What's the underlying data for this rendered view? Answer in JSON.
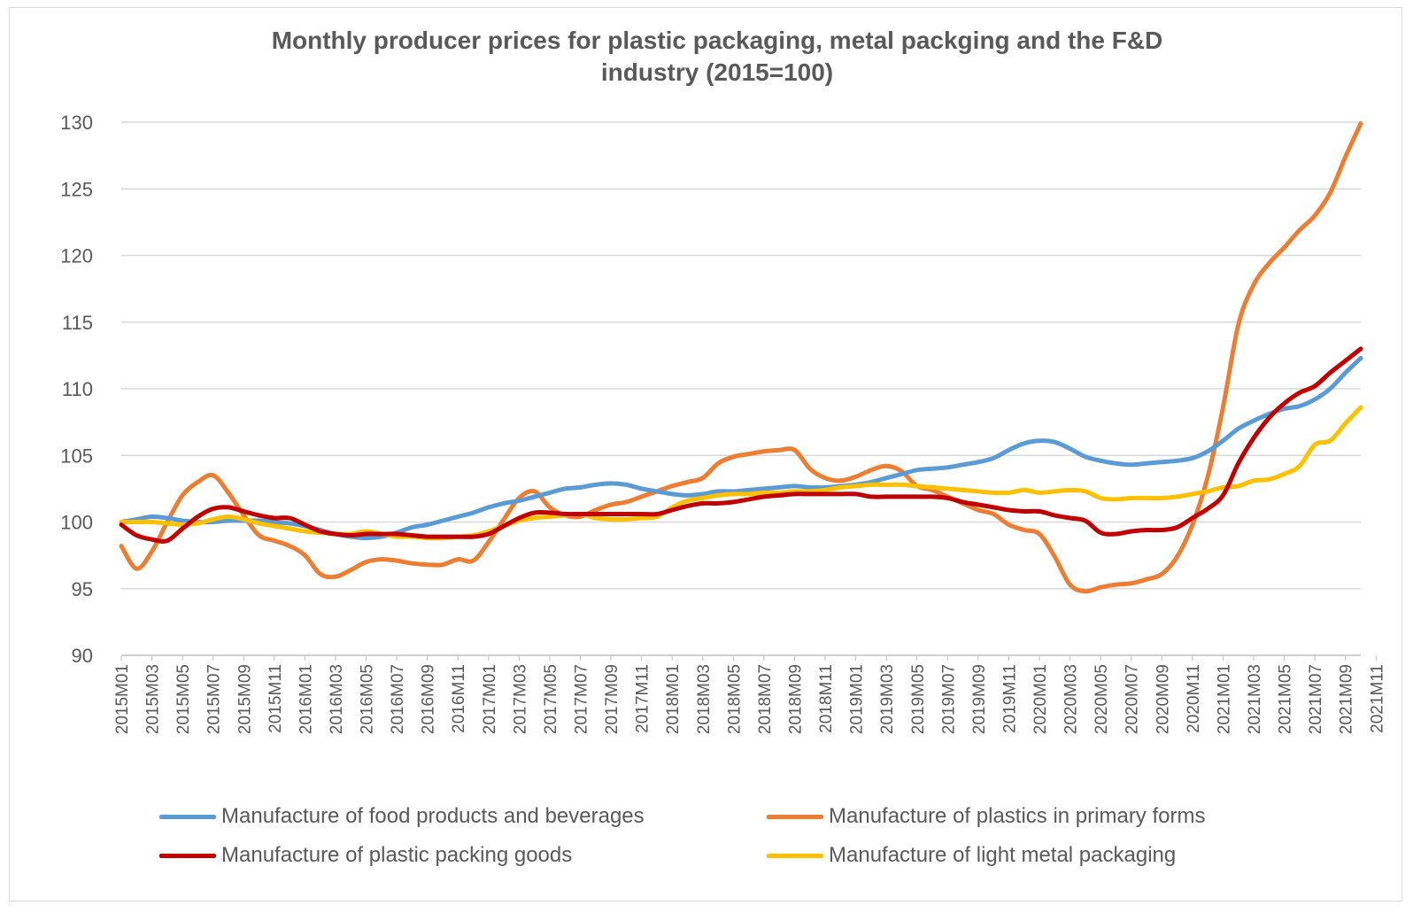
{
  "chart_data": {
    "type": "line",
    "title_line1": "Monthly producer prices for plastic packaging, metal packging and the F&D",
    "title_line2": "industry (2015=100)",
    "xlabel": "",
    "ylabel": "",
    "ylim": [
      90,
      130
    ],
    "yticks": [
      90,
      95,
      100,
      105,
      110,
      115,
      120,
      125,
      130
    ],
    "grid": "horizontal",
    "legend_position": "bottom",
    "xtick_labels": [
      "2015M01",
      "2015M03",
      "2015M05",
      "2015M07",
      "2015M09",
      "2015M11",
      "2016M01",
      "2016M03",
      "2016M05",
      "2016M07",
      "2016M09",
      "2016M11",
      "2017M01",
      "2017M03",
      "2017M05",
      "2017M07",
      "2017M09",
      "2017M11",
      "2018M01",
      "2018M03",
      "2018M05",
      "2018M07",
      "2018M09",
      "2018M11",
      "2019M01",
      "2019M03",
      "2019M05",
      "2019M07",
      "2019M09",
      "2019M11",
      "2020M01",
      "2020M03",
      "2020M05",
      "2020M07",
      "2020M09",
      "2020M11",
      "2021M01",
      "2021M03",
      "2021M05",
      "2021M07",
      "2021M09",
      "2021M11"
    ],
    "series": [
      {
        "name": "Manufacture of food products and beverages",
        "color": "#5B9BD5",
        "values": [
          100,
          100.2,
          100.4,
          100.3,
          100.1,
          100,
          100,
          100.1,
          100.1,
          100.1,
          100,
          99.9,
          99.7,
          99.4,
          99.1,
          98.9,
          98.8,
          98.9,
          99.2,
          99.6,
          99.8,
          100.1,
          100.4,
          100.7,
          101.1,
          101.4,
          101.6,
          101.9,
          102.2,
          102.5,
          102.6,
          102.8,
          102.9,
          102.8,
          102.5,
          102.3,
          102.1,
          102,
          102.1,
          102.3,
          102.3,
          102.4,
          102.5,
          102.6,
          102.7,
          102.6,
          102.6,
          102.7,
          102.8,
          103,
          103.3,
          103.6,
          103.9,
          104,
          104.1,
          104.3,
          104.5,
          104.8,
          105.4,
          105.9,
          106.1,
          106,
          105.5,
          104.9,
          104.6,
          104.4,
          104.3,
          104.4,
          104.5,
          104.6,
          104.8,
          105.3,
          106.1,
          107,
          107.6,
          108.1,
          108.5,
          108.7,
          109.2,
          110,
          111.2,
          112.3
        ]
      },
      {
        "name": "Manufacture of plastics in primary forms",
        "color": "#ED7D31",
        "values": [
          98.2,
          96.5,
          97.8,
          100,
          102,
          103,
          103.5,
          102.2,
          100.5,
          99,
          98.6,
          98.2,
          97.5,
          96.1,
          95.9,
          96.4,
          97,
          97.2,
          97.1,
          96.9,
          96.8,
          96.8,
          97.2,
          97.1,
          98.5,
          100.2,
          101.8,
          102.3,
          101.1,
          100.5,
          100.4,
          100.9,
          101.3,
          101.5,
          101.9,
          102.3,
          102.7,
          103,
          103.3,
          104.4,
          104.9,
          105.1,
          105.3,
          105.4,
          105.4,
          104,
          103.3,
          103.1,
          103.4,
          103.9,
          104.2,
          103.8,
          102.7,
          102.4,
          101.9,
          101.4,
          100.9,
          100.6,
          99.8,
          99.4,
          99.1,
          97.4,
          95.3,
          94.8,
          95.1,
          95.3,
          95.4,
          95.7,
          96.1,
          97.4,
          99.8,
          103.4,
          108.6,
          114.8,
          117.8,
          119.4,
          120.6,
          121.9,
          123,
          124.7,
          127.4,
          129.9
        ]
      },
      {
        "name": "Manufacture of plastic packing goods",
        "color": "#C00000",
        "values": [
          99.8,
          99,
          98.7,
          98.6,
          99.5,
          100.4,
          101,
          101.1,
          100.8,
          100.5,
          100.3,
          100.3,
          99.8,
          99.3,
          99.1,
          99,
          99.1,
          99.1,
          99.1,
          99,
          98.9,
          98.9,
          98.9,
          98.9,
          99.1,
          99.7,
          100.3,
          100.7,
          100.7,
          100.6,
          100.6,
          100.6,
          100.6,
          100.6,
          100.6,
          100.6,
          100.9,
          101.2,
          101.4,
          101.4,
          101.5,
          101.7,
          101.9,
          102,
          102.1,
          102.1,
          102.1,
          102.1,
          102.1,
          101.9,
          101.9,
          101.9,
          101.9,
          101.9,
          101.8,
          101.5,
          101.3,
          101.1,
          100.9,
          100.8,
          100.8,
          100.5,
          100.3,
          100.1,
          99.2,
          99.1,
          99.3,
          99.4,
          99.4,
          99.6,
          100.3,
          101,
          102,
          104.4,
          106.3,
          107.8,
          108.9,
          109.7,
          110.2,
          111.2,
          112.1,
          113
        ]
      },
      {
        "name": "Manufacture of light metal packaging",
        "color": "#FFC000",
        "values": [
          100,
          100,
          100,
          99.9,
          99.8,
          99.9,
          100.2,
          100.4,
          100.2,
          99.9,
          99.7,
          99.5,
          99.3,
          99.2,
          99.1,
          99.1,
          99.3,
          99.1,
          98.9,
          98.9,
          98.8,
          98.8,
          98.9,
          99,
          99.3,
          99.7,
          100.1,
          100.3,
          100.4,
          100.5,
          100.6,
          100.3,
          100.2,
          100.2,
          100.3,
          100.4,
          101.1,
          101.6,
          101.8,
          102,
          102.1,
          102.1,
          102.2,
          102.2,
          102.3,
          102.3,
          102.4,
          102.6,
          102.7,
          102.8,
          102.8,
          102.8,
          102.7,
          102.6,
          102.5,
          102.4,
          102.3,
          102.2,
          102.2,
          102.4,
          102.2,
          102.3,
          102.4,
          102.3,
          101.8,
          101.7,
          101.8,
          101.8,
          101.8,
          101.9,
          102.1,
          102.3,
          102.6,
          102.7,
          103.1,
          103.2,
          103.6,
          104.2,
          105.8,
          106.1,
          107.4,
          108.6
        ]
      }
    ]
  }
}
